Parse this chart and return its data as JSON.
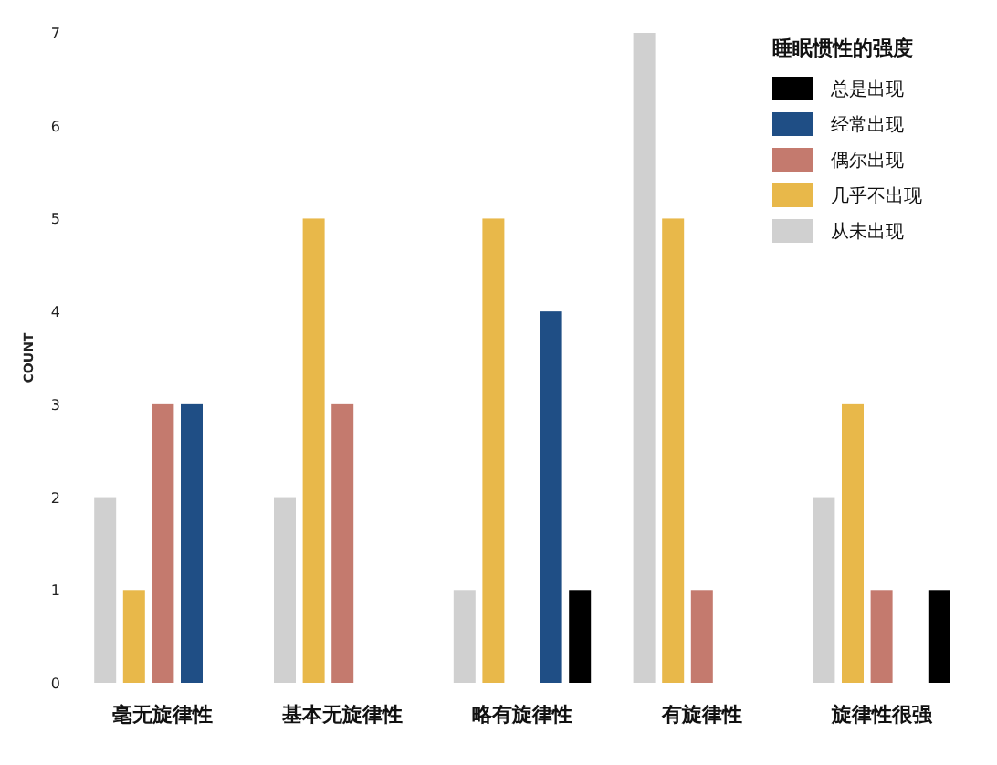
{
  "chart_data": {
    "type": "bar",
    "ylabel": "COUNT",
    "legend_title": "睡眠惯性的强度",
    "legend": "top right",
    "categories": [
      "毫无旋律性",
      "基本无旋律性",
      "略有旋律性",
      "有旋律性",
      "旋律性很强"
    ],
    "ylim": [
      0,
      7
    ],
    "yticks": [
      0,
      1,
      2,
      3,
      4,
      5,
      6,
      7
    ],
    "series": [
      {
        "name": "总是出现",
        "color": "#000000",
        "values": [
          null,
          null,
          1,
          null,
          1
        ]
      },
      {
        "name": "经常出现",
        "color": "#1f4e85",
        "values": [
          3,
          null,
          4,
          null,
          null
        ]
      },
      {
        "name": "偶尔出现",
        "color": "#c47a6e",
        "values": [
          3,
          3,
          null,
          1,
          1
        ]
      },
      {
        "name": "几乎不出现",
        "color": "#e8b84a",
        "values": [
          1,
          5,
          5,
          5,
          3
        ]
      },
      {
        "name": "从未出现",
        "color": "#d0d0d0",
        "values": [
          2,
          2,
          1,
          7,
          2
        ]
      }
    ]
  }
}
